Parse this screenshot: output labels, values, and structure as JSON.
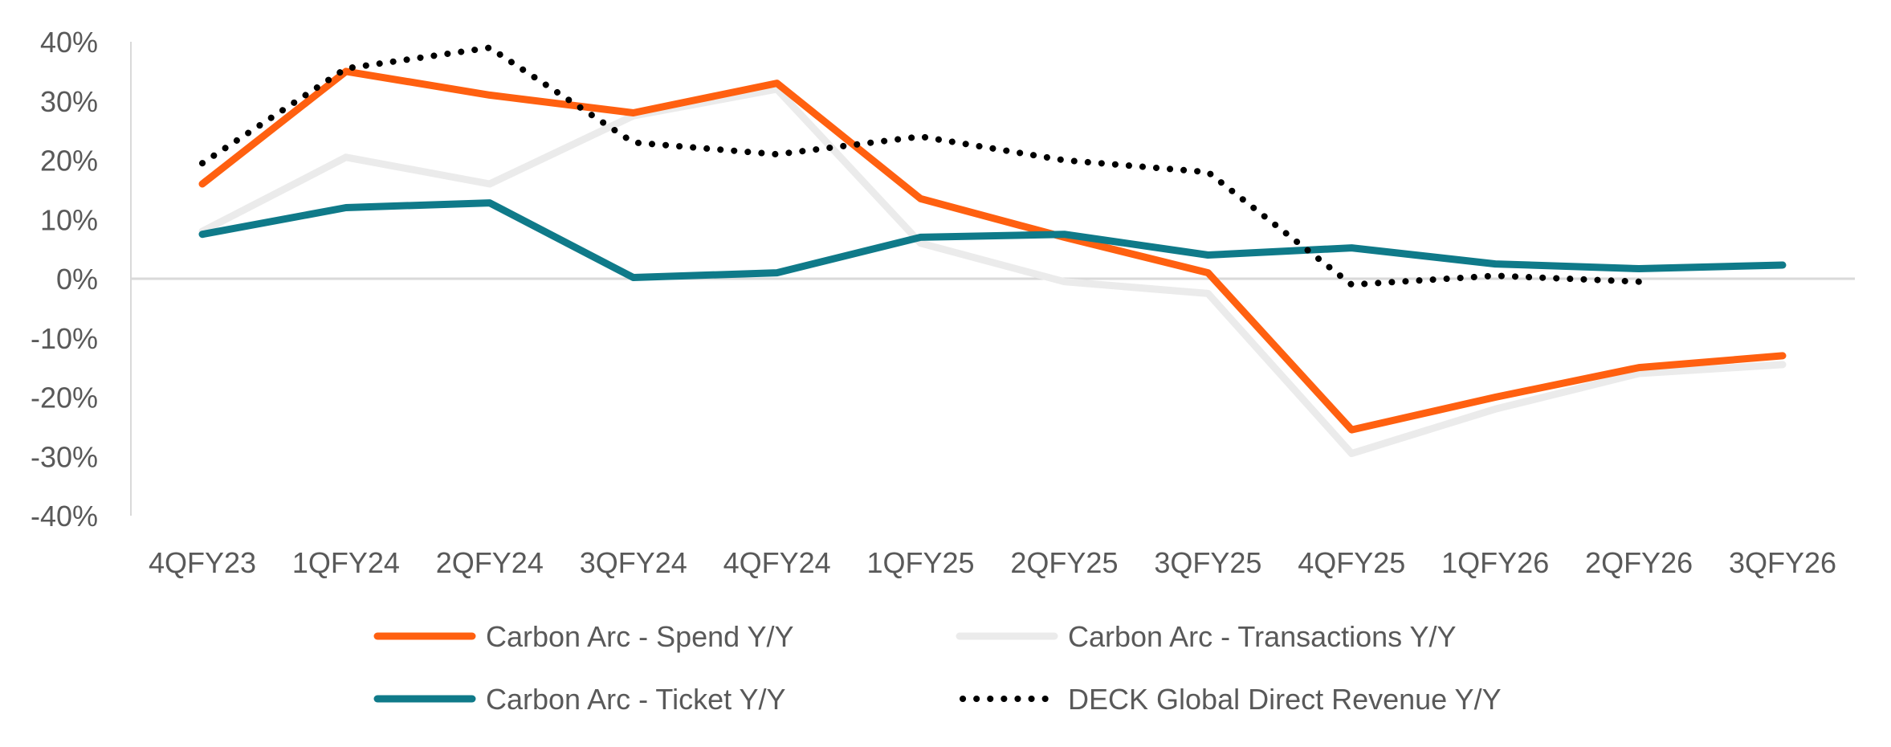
{
  "chart_data": {
    "type": "line",
    "title": "",
    "xlabel": "",
    "ylabel": "",
    "ylim": [
      -40,
      40
    ],
    "y_tick_step": 10,
    "y_tick_labels": [
      "40%",
      "30%",
      "20%",
      "10%",
      "0%",
      "-10%",
      "-20%",
      "-30%",
      "-40%"
    ],
    "categories": [
      "4QFY23",
      "1QFY24",
      "2QFY24",
      "3QFY24",
      "4QFY24",
      "1QFY25",
      "2QFY25",
      "3QFY25",
      "4QFY25",
      "1QFY26",
      "2QFY26",
      "3QFY26"
    ],
    "grid": false,
    "zero_line": true,
    "legend_position": "bottom",
    "series": [
      {
        "name": "Carbon Arc - Spend Y/Y",
        "color": "#FF6010",
        "style": "solid",
        "values": [
          16,
          35,
          31,
          28,
          33,
          13.5,
          7,
          1,
          -25.5,
          -20,
          -15,
          -13
        ]
      },
      {
        "name": "Carbon Arc - Transactions Y/Y",
        "color": "#EBEBEB",
        "style": "solid",
        "values": [
          8,
          20.5,
          16,
          27.5,
          32,
          6,
          -0.5,
          -2.5,
          -29.5,
          -22,
          -16,
          -14.5
        ]
      },
      {
        "name": "Carbon Arc - Ticket Y/Y",
        "color": "#0F7A89",
        "style": "solid",
        "values": [
          7.5,
          12,
          12.8,
          0.2,
          1,
          7,
          7.5,
          4,
          5.2,
          2.5,
          1.7,
          2.3
        ]
      },
      {
        "name": "DECK Global Direct Revenue Y/Y",
        "color": "#000000",
        "style": "dotted",
        "values": [
          19.5,
          35.5,
          39,
          23,
          21,
          24,
          20,
          18,
          -1,
          0.5,
          -0.5,
          null
        ]
      }
    ],
    "legend_order": [
      0,
      1,
      2,
      3
    ]
  }
}
